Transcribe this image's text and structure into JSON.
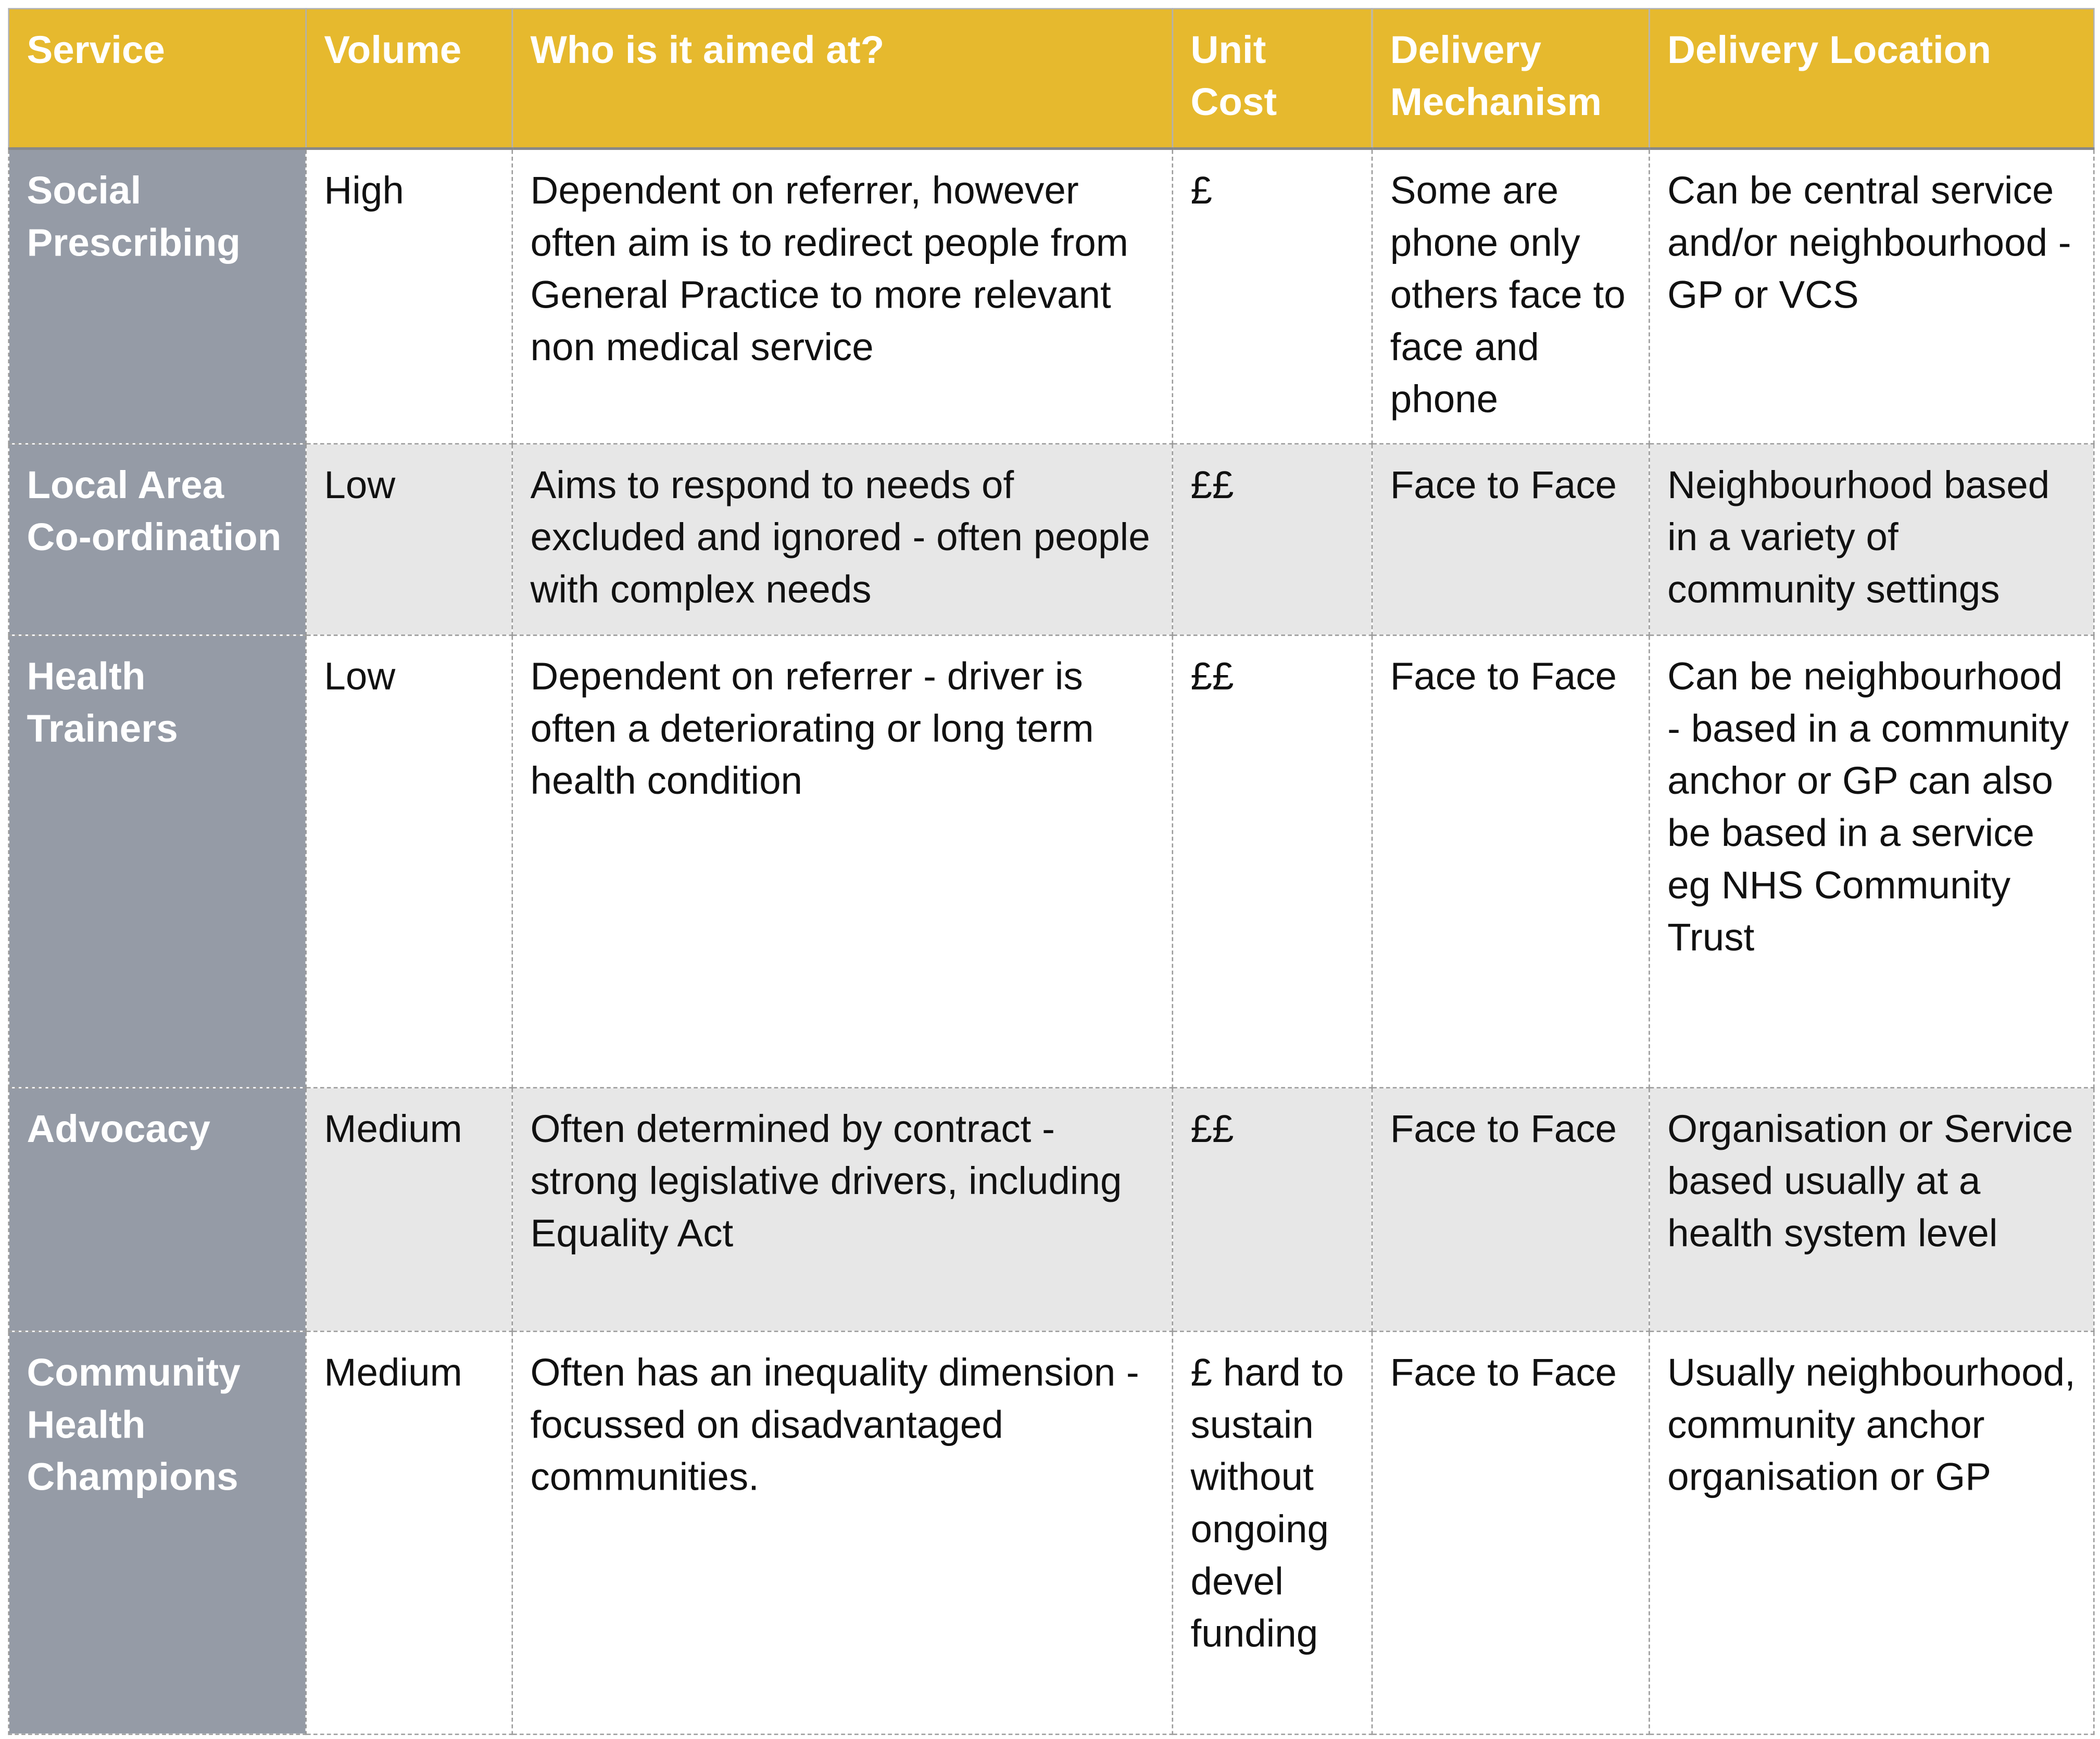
{
  "table": {
    "columns": [
      "Service",
      "Volume",
      "Who is it aimed at?",
      "Unit Cost",
      "Delivery Mechanism",
      "Delivery Location"
    ],
    "rows": [
      [
        "Social Prescribing",
        "High",
        "Dependent on referrer, however often aim is to redirect people from General Practice to more relevant non medical service",
        "£",
        "Some are phone only others face to face and phone",
        "Can be central service and/or neighbourhood - GP or VCS"
      ],
      [
        "Local Area Co-ordination",
        "Low",
        "Aims to respond to needs of excluded and ignored - often people with complex needs",
        "££",
        "Face to Face",
        "Neighbourhood based in a variety of community settings"
      ],
      [
        "Health Trainers",
        "Low",
        "Dependent on referrer - driver is often a deteriorating or long term health condition",
        "££",
        "Face to Face",
        "Can be neighbourhood - based in a community anchor or GP can also be based in a service eg NHS Community Trust"
      ],
      [
        "Advocacy",
        "Medium",
        "Often determined by contract - strong legislative drivers, including Equality Act",
        "££",
        "Face to Face",
        "Organisation or Service based usually at a health system level"
      ],
      [
        "Community Health Champions",
        "Medium",
        "Often has an inequality dimension - focussed on disadvantaged communities.",
        "£ hard to sustain without ongoing devel funding",
        "Face to Face",
        "Usually neighbourhood, community anchor organisation or GP"
      ]
    ]
  }
}
